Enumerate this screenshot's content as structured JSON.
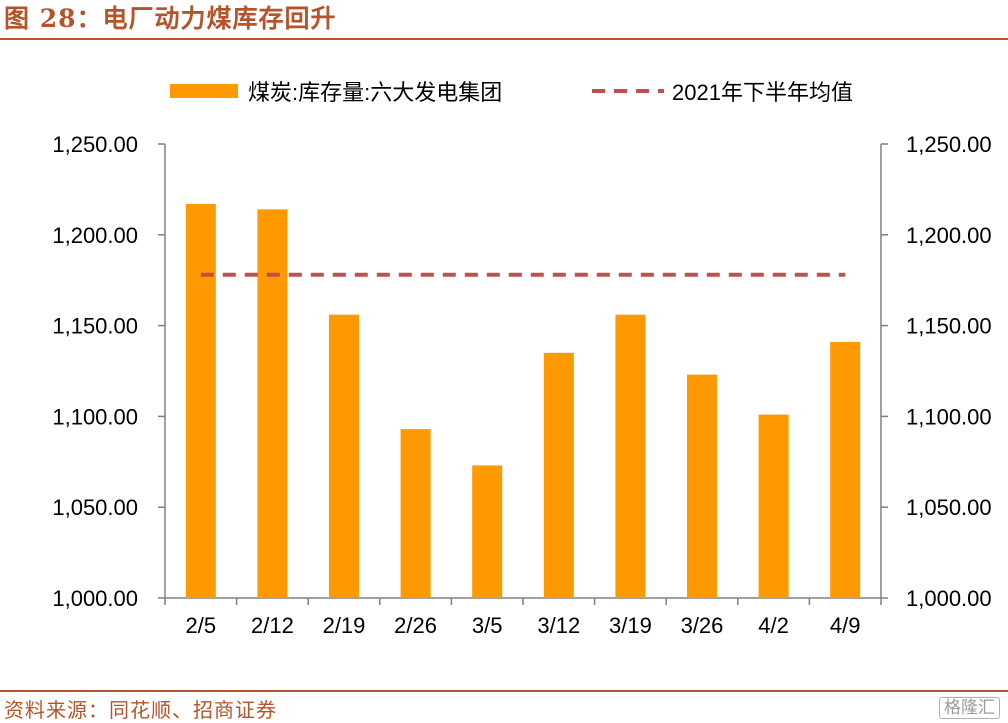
{
  "figure": {
    "title": "图 28：电厂动力煤库存回升",
    "source": "资料来源：同花顺、招商证券",
    "watermark": "格隆汇"
  },
  "chart_data": {
    "type": "bar",
    "categories": [
      "2/5",
      "2/12",
      "2/19",
      "2/26",
      "3/5",
      "3/12",
      "3/19",
      "3/26",
      "4/2",
      "4/9"
    ],
    "series": [
      {
        "name": "煤炭:库存量:六大发电集团",
        "type": "bar",
        "color": "#FF9900",
        "values": [
          1217,
          1214,
          1156,
          1093,
          1073,
          1135,
          1156,
          1123,
          1101,
          1141
        ]
      },
      {
        "name": "2021年下半年均值",
        "type": "line-dashed",
        "color": "#C0504D",
        "values": [
          1178,
          1178,
          1178,
          1178,
          1178,
          1178,
          1178,
          1178,
          1178,
          1178
        ]
      }
    ],
    "ylim": [
      1000,
      1250
    ],
    "yticks": [
      "1,000.00",
      "1,050.00",
      "1,100.00",
      "1,150.00",
      "1,200.00",
      "1,250.00"
    ],
    "y2ticks": [
      "1,000.00",
      "1,050.00",
      "1,100.00",
      "1,150.00",
      "1,200.00",
      "1,250.00"
    ],
    "legend_position": "top",
    "grid": false
  }
}
